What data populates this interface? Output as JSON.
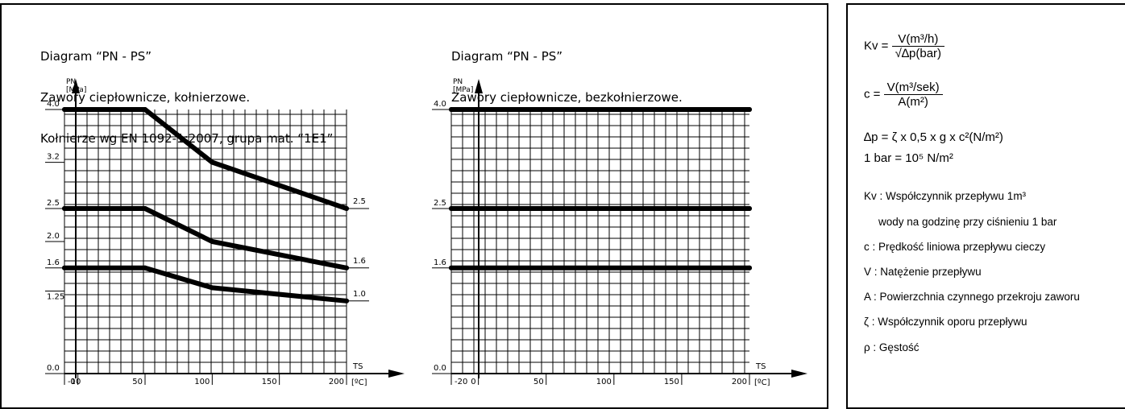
{
  "chart_data": [
    {
      "type": "line",
      "title_lines": [
        "Diagram “PN - PS”",
        "Zawory ciepłownicze, kołnierzowe.",
        "Kołnierze wg EN 1092-1:2007, grupa mat. “1E1”"
      ],
      "ylabel_lines": [
        "PN",
        "[MPa]"
      ],
      "xlabel_lines": [
        "TS",
        "[ºC]"
      ],
      "xlim": [
        -10,
        200
      ],
      "ylim": [
        0,
        4.0
      ],
      "x_ticks": [
        "-10",
        "0",
        "50",
        "100",
        "150",
        "200"
      ],
      "x_tick_values": [
        -10,
        0,
        50,
        100,
        150,
        200
      ],
      "y_ticks": [
        "0.0",
        "1.25",
        "1.6",
        "2.0",
        "2.5",
        "3.2",
        "4.0"
      ],
      "y_tick_values": [
        0,
        1.25,
        1.6,
        2.0,
        2.5,
        3.2,
        4.0
      ],
      "series": [
        {
          "name": "2.5",
          "x": [
            -10,
            50,
            100,
            200
          ],
          "y": [
            4.0,
            4.0,
            3.2,
            2.5
          ]
        },
        {
          "name": "1.6",
          "x": [
            -10,
            50,
            100,
            200
          ],
          "y": [
            2.5,
            2.5,
            2.0,
            1.6
          ]
        },
        {
          "name": "1.0",
          "x": [
            -10,
            50,
            100,
            200
          ],
          "y": [
            1.6,
            1.6,
            1.3,
            1.1
          ]
        }
      ],
      "grid": true
    },
    {
      "type": "line",
      "title_lines": [
        "Diagram “PN - PS”",
        "Zawory ciepłownicze, bezkołnierzowe."
      ],
      "ylabel_lines": [
        "PN",
        "[MPa]"
      ],
      "xlabel_lines": [
        "TS",
        "[ºC]"
      ],
      "xlim": [
        -20,
        200
      ],
      "ylim": [
        0,
        4.0
      ],
      "x_ticks": [
        "-20",
        "0",
        "50",
        "100",
        "150",
        "200"
      ],
      "x_tick_values": [
        -20,
        0,
        50,
        100,
        150,
        200
      ],
      "y_ticks": [
        "0.0",
        "1.6",
        "2.5",
        "4.0"
      ],
      "y_tick_values": [
        0,
        1.6,
        2.5,
        4.0
      ],
      "series": [
        {
          "x": [
            -20,
            200
          ],
          "y": [
            4.0,
            4.0
          ]
        },
        {
          "x": [
            -20,
            200
          ],
          "y": [
            2.5,
            2.5
          ]
        },
        {
          "x": [
            -20,
            200
          ],
          "y": [
            1.6,
            1.6
          ]
        }
      ],
      "grid": true
    }
  ],
  "formulas": {
    "kv_lhs": "Kv =",
    "kv_num": "V(m³/h)",
    "kv_den": "√∆p(bar)",
    "c_lhs": "c =",
    "c_num": "V(m³/sek)",
    "c_den": "A(m²)",
    "dp": "∆p = ζ x 0,5 x g x c²(N/m²)",
    "bar": "1 bar = 10⁵ N/m²"
  },
  "definitions": [
    "Kv : Współczynnik przepływu 1m³",
    "      wody na godzinę przy ciśnieniu 1 bar",
    "c : Prędkość liniowa przepływu cieczy",
    "V : Natężenie przepływu",
    "A : Powierzchnia czynnego przekroju zaworu",
    "ζ : Współczynnik oporu przepływu",
    "ρ : Gęstość"
  ]
}
